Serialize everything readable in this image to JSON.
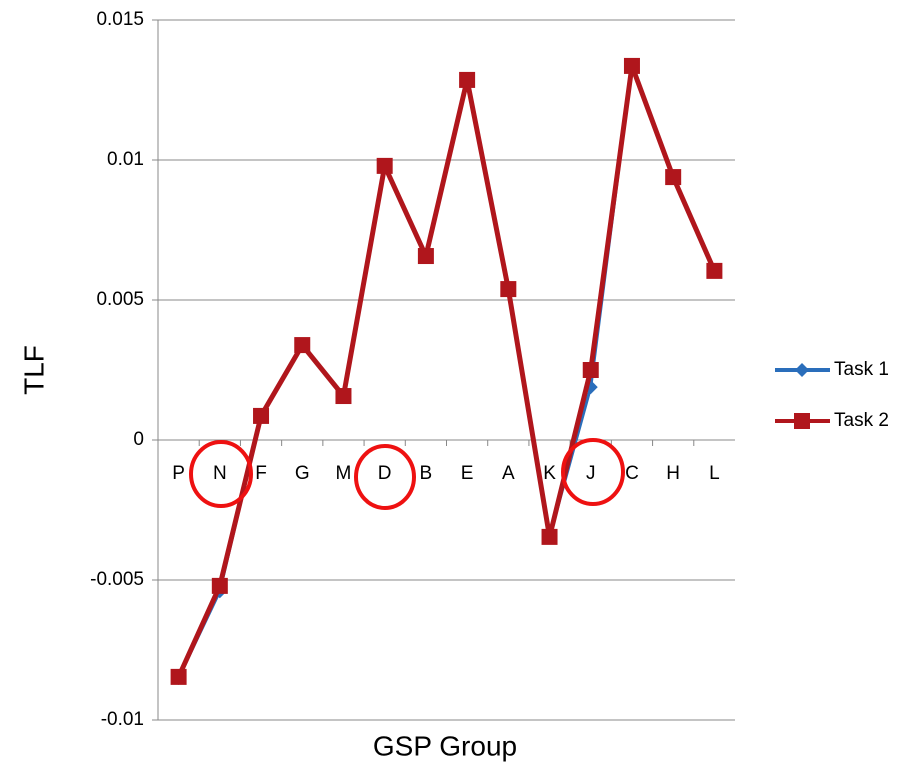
{
  "chart_data": {
    "type": "line",
    "x_label": "GSP Group",
    "y_label": "TLF",
    "categories": [
      "P",
      "N",
      "F",
      "G",
      "M",
      "D",
      "B",
      "E",
      "A",
      "K",
      "J",
      "C",
      "H",
      "L"
    ],
    "series": [
      {
        "name": "Task 1",
        "color": "#2a6ebb",
        "marker": "diamond",
        "values": [
          -0.0085,
          -0.0054,
          0.00086,
          0.00339,
          0.00157,
          0.00979,
          0.00657,
          0.01286,
          0.00539,
          -0.00346,
          0.00189,
          0.01336,
          0.00939,
          0.00604
        ]
      },
      {
        "name": "Task 2",
        "color": "#b0161c",
        "marker": "square",
        "values": [
          -0.00846,
          -0.00521,
          0.00086,
          0.00339,
          0.00157,
          0.00979,
          0.00657,
          0.01286,
          0.00539,
          -0.00346,
          0.0025,
          0.01336,
          0.00939,
          0.00604
        ]
      }
    ],
    "ylim": [
      -0.01,
      0.015
    ],
    "yticks": [
      -0.01,
      -0.005,
      0,
      0.005,
      0.01,
      0.015
    ],
    "grid": true,
    "legend": "right"
  }
}
